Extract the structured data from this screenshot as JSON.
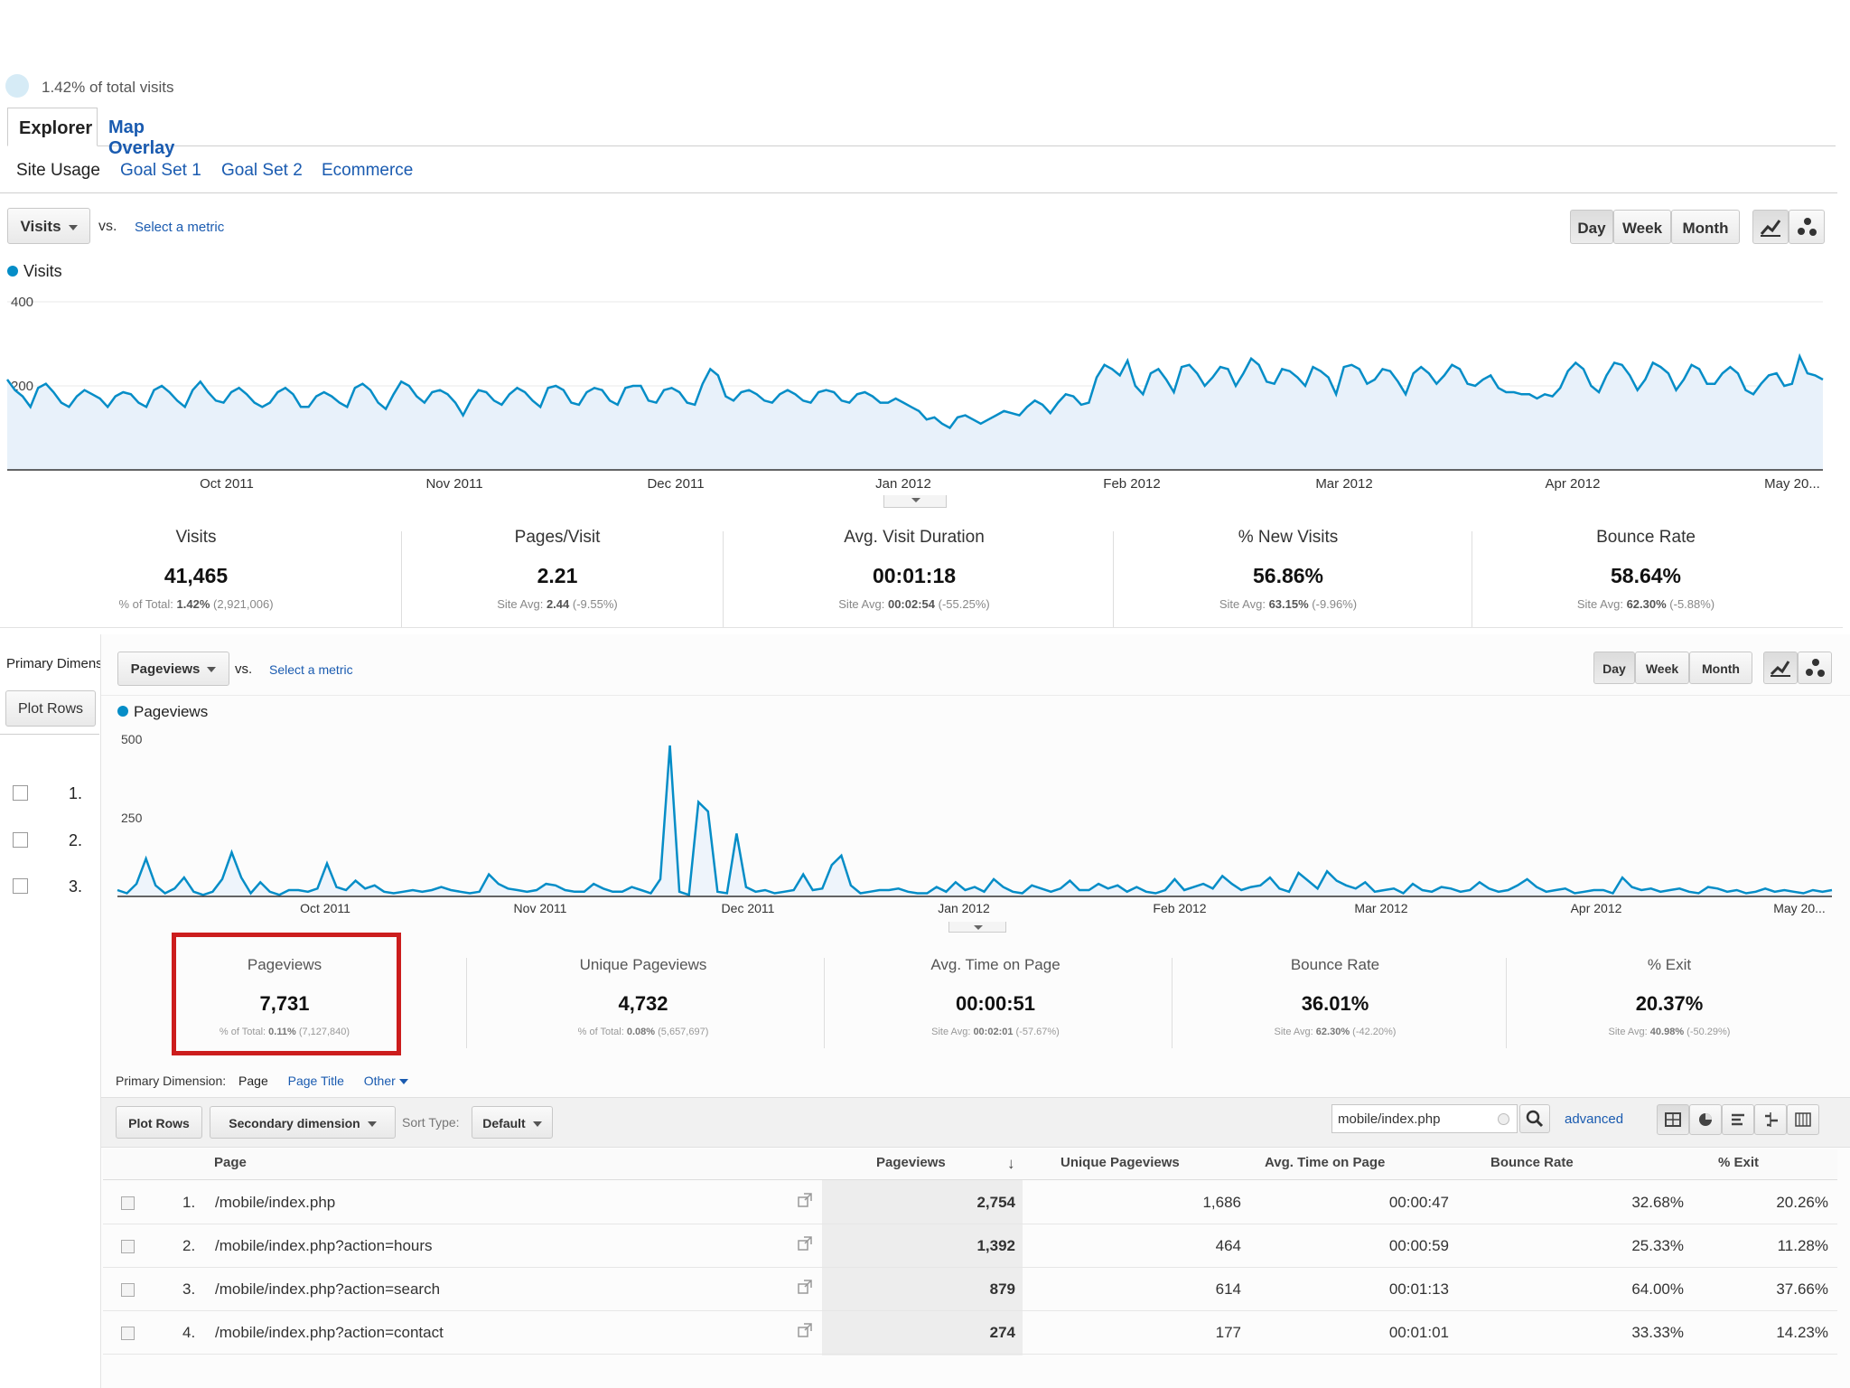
{
  "summary": {
    "pct_of_total": "1.42%",
    "pct_suffix": "of total visits"
  },
  "tabs": [
    {
      "label": "Explorer",
      "active": true
    },
    {
      "label": "Map Overlay",
      "active": false
    }
  ],
  "subtabs": [
    "Site Usage",
    "Goal Set 1",
    "Goal Set 2",
    "Ecommerce"
  ],
  "controls": {
    "metric": "Visits",
    "vs": "vs.",
    "select_metric": "Select a metric",
    "periods": [
      "Day",
      "Week",
      "Month"
    ],
    "selected_period": "Day",
    "chart_toggle_icons": [
      "line-chart-icon",
      "motion-chart-icon"
    ]
  },
  "chart_data": [
    {
      "type": "area",
      "legend": "Visits",
      "yticks": [
        "400",
        "200"
      ],
      "ylim": [
        0,
        400
      ],
      "xticks": [
        "Oct 2011",
        "Nov 2011",
        "Dec 2011",
        "Jan 2012",
        "Feb 2012",
        "Mar 2012",
        "Apr 2012",
        "May 20..."
      ],
      "grid": true,
      "color": "#058dc7",
      "values": [
        215,
        190,
        175,
        150,
        195,
        205,
        185,
        160,
        150,
        175,
        190,
        180,
        170,
        150,
        175,
        185,
        180,
        160,
        150,
        190,
        200,
        185,
        165,
        150,
        190,
        210,
        185,
        165,
        160,
        185,
        195,
        180,
        160,
        150,
        160,
        185,
        195,
        180,
        150,
        150,
        175,
        185,
        175,
        160,
        150,
        195,
        205,
        190,
        160,
        145,
        180,
        210,
        200,
        175,
        160,
        185,
        190,
        180,
        160,
        130,
        165,
        190,
        185,
        165,
        155,
        180,
        195,
        185,
        165,
        150,
        195,
        200,
        190,
        160,
        155,
        185,
        195,
        190,
        165,
        155,
        195,
        200,
        200,
        165,
        160,
        190,
        195,
        185,
        160,
        155,
        205,
        240,
        225,
        175,
        165,
        185,
        190,
        180,
        165,
        160,
        180,
        190,
        180,
        165,
        160,
        185,
        190,
        185,
        165,
        160,
        180,
        185,
        175,
        160,
        160,
        170,
        160,
        150,
        140,
        120,
        125,
        110,
        100,
        125,
        130,
        120,
        110,
        120,
        130,
        140,
        135,
        130,
        150,
        165,
        155,
        135,
        160,
        180,
        175,
        155,
        160,
        220,
        250,
        240,
        225,
        260,
        200,
        180,
        230,
        240,
        215,
        185,
        245,
        250,
        230,
        200,
        220,
        245,
        240,
        200,
        230,
        265,
        250,
        210,
        205,
        240,
        235,
        220,
        200,
        245,
        235,
        220,
        180,
        245,
        250,
        240,
        205,
        215,
        240,
        235,
        210,
        180,
        230,
        245,
        230,
        205,
        225,
        250,
        240,
        205,
        200,
        215,
        225,
        195,
        185,
        185,
        180,
        180,
        170,
        180,
        175,
        195,
        235,
        255,
        240,
        200,
        185,
        225,
        255,
        250,
        225,
        190,
        215,
        255,
        245,
        230,
        190,
        215,
        250,
        240,
        205,
        205,
        230,
        245,
        230,
        190,
        180,
        205,
        225,
        230,
        200,
        205,
        270,
        230,
        225,
        215
      ]
    },
    {
      "type": "line",
      "legend": "Pageviews",
      "yticks": [
        "500",
        "250"
      ],
      "ylim": [
        0,
        500
      ],
      "xticks": [
        "Oct 2011",
        "Nov 2011",
        "Dec 2011",
        "Jan 2012",
        "Feb 2012",
        "Mar 2012",
        "Apr 2012",
        "May 20..."
      ],
      "grid": false,
      "color": "#058dc7",
      "values": [
        20,
        10,
        40,
        120,
        35,
        10,
        25,
        60,
        15,
        5,
        15,
        55,
        140,
        60,
        10,
        45,
        15,
        5,
        20,
        20,
        15,
        25,
        105,
        30,
        20,
        50,
        25,
        35,
        15,
        10,
        15,
        20,
        15,
        20,
        30,
        20,
        15,
        10,
        15,
        70,
        40,
        25,
        20,
        15,
        20,
        40,
        35,
        20,
        15,
        15,
        40,
        25,
        15,
        15,
        30,
        20,
        10,
        55,
        480,
        15,
        5,
        300,
        270,
        15,
        10,
        200,
        30,
        15,
        20,
        10,
        15,
        20,
        70,
        20,
        25,
        100,
        130,
        35,
        10,
        15,
        20,
        20,
        25,
        15,
        10,
        10,
        30,
        15,
        45,
        20,
        30,
        15,
        55,
        30,
        15,
        10,
        35,
        25,
        15,
        25,
        50,
        20,
        20,
        40,
        25,
        35,
        15,
        30,
        15,
        10,
        20,
        55,
        20,
        30,
        40,
        25,
        65,
        40,
        20,
        30,
        35,
        60,
        25,
        15,
        75,
        50,
        25,
        80,
        50,
        35,
        25,
        45,
        15,
        20,
        25,
        10,
        40,
        20,
        15,
        30,
        25,
        15,
        20,
        45,
        25,
        15,
        20,
        35,
        55,
        30,
        15,
        20,
        25,
        10,
        15,
        20,
        20,
        10,
        60,
        30,
        20,
        25,
        15,
        20,
        25,
        15,
        10,
        30,
        25,
        15,
        20,
        10,
        15,
        25,
        15,
        20,
        15,
        10,
        20,
        15,
        20
      ]
    }
  ],
  "metrics": [
    {
      "label": "Visits",
      "value": "41,465",
      "sub_prefix": "% of Total:",
      "sub_bold": "1.42%",
      "sub_rest": "(2,921,006)"
    },
    {
      "label": "Pages/Visit",
      "value": "2.21",
      "sub_prefix": "Site Avg:",
      "sub_bold": "2.44",
      "sub_rest": "(-9.55%)"
    },
    {
      "label": "Avg. Visit Duration",
      "value": "00:01:18",
      "sub_prefix": "Site Avg:",
      "sub_bold": "00:02:54",
      "sub_rest": "(-55.25%)"
    },
    {
      "label": "% New Visits",
      "value": "56.86%",
      "sub_prefix": "Site Avg:",
      "sub_bold": "63.15%",
      "sub_rest": "(-9.96%)"
    },
    {
      "label": "Bounce Rate",
      "value": "58.64%",
      "sub_prefix": "Site Avg:",
      "sub_bold": "62.30%",
      "sub_rest": "(-5.88%)"
    }
  ],
  "left_panel": {
    "primary_dim": "Primary Dimens",
    "plot_rows": "Plot Rows",
    "rows": [
      "1.",
      "2.",
      "3."
    ]
  },
  "lower_controls": {
    "metric": "Pageviews",
    "vs": "vs.",
    "select_metric": "Select a metric",
    "periods": [
      "Day",
      "Week",
      "Month"
    ]
  },
  "metrics2": [
    {
      "label": "Pageviews",
      "value": "7,731",
      "sub_prefix": "% of Total:",
      "sub_bold": "0.11%",
      "sub_rest": "(7,127,840)",
      "highlighted": true
    },
    {
      "label": "Unique Pageviews",
      "value": "4,732",
      "sub_prefix": "% of Total:",
      "sub_bold": "0.08%",
      "sub_rest": "(5,657,697)"
    },
    {
      "label": "Avg. Time on Page",
      "value": "00:00:51",
      "sub_prefix": "Site Avg:",
      "sub_bold": "00:02:01",
      "sub_rest": "(-57.67%)"
    },
    {
      "label": "Bounce Rate",
      "value": "36.01%",
      "sub_prefix": "Site Avg:",
      "sub_bold": "62.30%",
      "sub_rest": "(-42.20%)"
    },
    {
      "label": "% Exit",
      "value": "20.37%",
      "sub_prefix": "Site Avg:",
      "sub_bold": "40.98%",
      "sub_rest": "(-50.29%)"
    }
  ],
  "dimension_bar": {
    "label": "Primary Dimension:",
    "page": "Page",
    "page_title": "Page Title",
    "other": "Other"
  },
  "table_controls": {
    "plot_rows": "Plot Rows",
    "secondary": "Secondary dimension",
    "sort_type": "Sort Type:",
    "default": "Default",
    "search_value": "mobile/index.php",
    "advanced": "advanced"
  },
  "table": {
    "headers": [
      "Page",
      "Pageviews",
      "Unique Pageviews",
      "Avg. Time on Page",
      "Bounce Rate",
      "% Exit"
    ],
    "rows": [
      {
        "n": "1.",
        "page": "/mobile/index.php",
        "pv": "2,754",
        "upv": "1,686",
        "time": "00:00:47",
        "bounce": "32.68%",
        "exit": "20.26%"
      },
      {
        "n": "2.",
        "page": "/mobile/index.php?action=hours",
        "pv": "1,392",
        "upv": "464",
        "time": "00:00:59",
        "bounce": "25.33%",
        "exit": "11.28%"
      },
      {
        "n": "3.",
        "page": "/mobile/index.php?action=search",
        "pv": "879",
        "upv": "614",
        "time": "00:01:13",
        "bounce": "64.00%",
        "exit": "37.66%"
      },
      {
        "n": "4.",
        "page": "/mobile/index.php?action=contact",
        "pv": "274",
        "upv": "177",
        "time": "00:01:01",
        "bounce": "33.33%",
        "exit": "14.23%"
      }
    ]
  }
}
